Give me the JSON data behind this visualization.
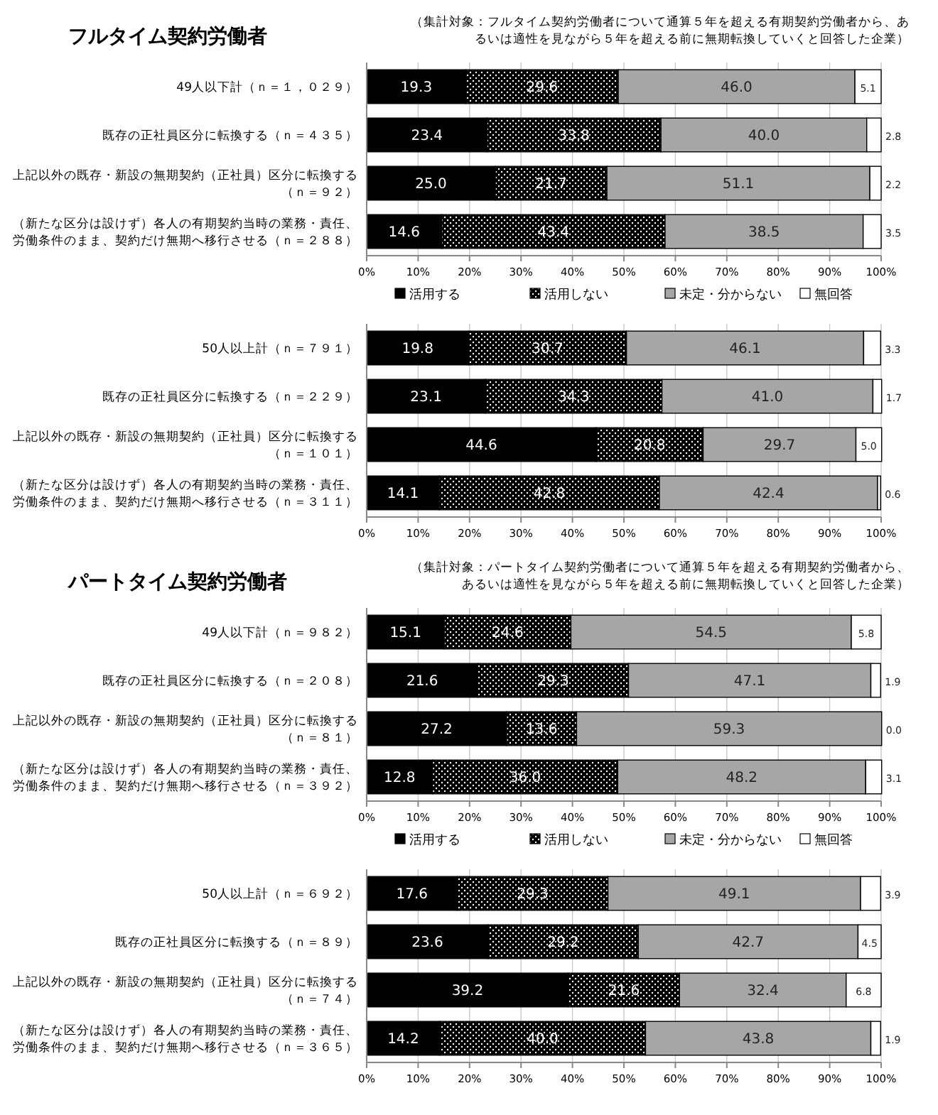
{
  "chart_data": [
    {
      "type": "bar",
      "orientation": "horizontal",
      "stacked": true,
      "title": "フルタイム契約労働者",
      "subtitle": "（集計対象：フルタイム契約労働者について通算５年を超える有期契約労働者から、あるいは適性を見ながら５年を超える前に無期転換していくと回答した企業）",
      "categories": [
        "49人以下計（ｎ＝１，０２９）",
        "既存の正社員区分に転換する（ｎ＝４３５）",
        "上記以外の既存・新設の無期契約（正社員）区分に転換する（ｎ＝９２）",
        "（新たな区分は設けず）各人の有期契約当時の業務・責任、労働条件のまま、契約だけ無期へ移行させる（ｎ＝２８８）"
      ],
      "series": [
        {
          "name": "活用する",
          "color": "#000000",
          "values": [
            19.3,
            23.4,
            25.0,
            14.6
          ],
          "value_labels": [
            "19.3",
            "23.4",
            "25.0",
            "14.6"
          ]
        },
        {
          "name": "活用しない",
          "color": "#000000",
          "values": [
            29.6,
            33.8,
            21.7,
            43.4
          ],
          "value_labels": [
            "29.6",
            "33.8",
            "21.7",
            "43.4"
          ]
        },
        {
          "name": "未定・分からない",
          "color": "#a6a6a6",
          "values": [
            46.0,
            40.0,
            51.1,
            38.5
          ],
          "value_labels": [
            "46.0",
            "40.0",
            "51.1",
            "38.5"
          ]
        },
        {
          "name": "無回答",
          "color": "#ffffff",
          "values": [
            5.1,
            2.8,
            2.2,
            3.5
          ],
          "value_labels": [
            "5.1",
            "2.8",
            "2.2",
            "3.5"
          ]
        }
      ],
      "xlim": [
        0,
        100
      ],
      "xticks": [
        {
          "value": 0,
          "label": "0%"
        },
        {
          "value": 10,
          "label": "10%"
        },
        {
          "value": 20,
          "label": "20%"
        },
        {
          "value": 30,
          "label": "30%"
        },
        {
          "value": 40,
          "label": "40%"
        },
        {
          "value": 50,
          "label": "50%"
        },
        {
          "value": 60,
          "label": "60%"
        },
        {
          "value": 70,
          "label": "70%"
        },
        {
          "value": 80,
          "label": "80%"
        },
        {
          "value": 90,
          "label": "90%"
        },
        {
          "value": 100,
          "label": "100%"
        }
      ],
      "grid": "x",
      "legend": "bottom"
    },
    {
      "type": "bar",
      "orientation": "horizontal",
      "stacked": true,
      "categories": [
        "50人以上計（ｎ＝７９１）",
        "既存の正社員区分に転換する（ｎ＝２２９）",
        "上記以外の既存・新設の無期契約（正社員）区分に転換する（ｎ＝１０１）",
        "（新たな区分は設けず）各人の有期契約当時の業務・責任、労働条件のまま、契約だけ無期へ移行させる（ｎ＝３１１）"
      ],
      "series": [
        {
          "color": "#000000",
          "values": [
            19.8,
            23.1,
            44.6,
            14.1
          ],
          "value_labels": [
            "19.8",
            "23.1",
            "44.6",
            "14.1"
          ]
        },
        {
          "color": "#000000",
          "values": [
            30.7,
            34.3,
            20.8,
            42.8
          ],
          "value_labels": [
            "30.7",
            "34.3",
            "20.8",
            "42.8"
          ]
        },
        {
          "color": "#a6a6a6",
          "values": [
            46.1,
            41.0,
            29.7,
            42.4
          ],
          "value_labels": [
            "46.1",
            "41.0",
            "29.7",
            "42.4"
          ]
        },
        {
          "color": "#ffffff",
          "values": [
            3.3,
            1.7,
            5.0,
            0.6
          ],
          "value_labels": [
            "3.3",
            "1.7",
            "5.0",
            "0.6"
          ]
        }
      ],
      "xlim": [
        0,
        100
      ],
      "xticks": [
        {
          "value": 0,
          "label": "0%"
        },
        {
          "value": 10,
          "label": "10%"
        },
        {
          "value": 20,
          "label": "20%"
        },
        {
          "value": 30,
          "label": "30%"
        },
        {
          "value": 40,
          "label": "40%"
        },
        {
          "value": 50,
          "label": "50%"
        },
        {
          "value": 60,
          "label": "60%"
        },
        {
          "value": 70,
          "label": "70%"
        },
        {
          "value": 80,
          "label": "80%"
        },
        {
          "value": 90,
          "label": "90%"
        },
        {
          "value": 100,
          "label": "100%"
        }
      ],
      "grid": "x"
    },
    {
      "type": "bar",
      "orientation": "horizontal",
      "stacked": true,
      "title": "パートタイム契約労働者",
      "subtitle": "（集計対象：パートタイム契約労働者について通算５年を超える有期契約労働者から、あるいは適性を見ながら５年を超える前に無期転換していくと回答した企業）",
      "categories": [
        "49人以下計（ｎ＝９８２）",
        "既存の正社員区分に転換する（ｎ＝２０８）",
        "上記以外の既存・新設の無期契約（正社員）区分に転換する（ｎ＝８１）",
        "（新たな区分は設けず）各人の有期契約当時の業務・責任、労働条件のまま、契約だけ無期へ移行させる（ｎ＝３９２）"
      ],
      "series": [
        {
          "name": "活用する",
          "color": "#000000",
          "values": [
            15.1,
            21.6,
            27.2,
            12.8
          ],
          "value_labels": [
            "15.1",
            "21.6",
            "27.2",
            "12.8"
          ]
        },
        {
          "name": "活用しない",
          "color": "#000000",
          "values": [
            24.6,
            29.3,
            13.6,
            36.0
          ],
          "value_labels": [
            "24.6",
            "29.3",
            "13.6",
            "36.0"
          ]
        },
        {
          "name": "未定・分からない",
          "color": "#a6a6a6",
          "values": [
            54.5,
            47.1,
            59.3,
            48.2
          ],
          "value_labels": [
            "54.5",
            "47.1",
            "59.3",
            "48.2"
          ]
        },
        {
          "name": "無回答",
          "color": "#ffffff",
          "values": [
            5.8,
            1.9,
            0.0,
            3.1
          ],
          "value_labels": [
            "5.8",
            "1.9",
            "0.0",
            "3.1"
          ]
        }
      ],
      "xlim": [
        0,
        100
      ],
      "xticks": [
        {
          "value": 0,
          "label": "0%"
        },
        {
          "value": 10,
          "label": "10%"
        },
        {
          "value": 20,
          "label": "20%"
        },
        {
          "value": 30,
          "label": "30%"
        },
        {
          "value": 40,
          "label": "40%"
        },
        {
          "value": 50,
          "label": "50%"
        },
        {
          "value": 60,
          "label": "60%"
        },
        {
          "value": 70,
          "label": "70%"
        },
        {
          "value": 80,
          "label": "80%"
        },
        {
          "value": 90,
          "label": "90%"
        },
        {
          "value": 100,
          "label": "100%"
        }
      ],
      "grid": "x",
      "legend": "bottom"
    },
    {
      "type": "bar",
      "orientation": "horizontal",
      "stacked": true,
      "categories": [
        "50人以上計（ｎ＝６９２）",
        "既存の正社員区分に転換する（ｎ＝８９）",
        "上記以外の既存・新設の無期契約（正社員）区分に転換する（ｎ＝７４）",
        "（新たな区分は設けず）各人の有期契約当時の業務・責任、労働条件のまま、契約だけ無期へ移行させる（ｎ＝３６５）"
      ],
      "series": [
        {
          "color": "#000000",
          "values": [
            17.6,
            23.6,
            39.2,
            14.2
          ],
          "value_labels": [
            "17.6",
            "23.6",
            "39.2",
            "14.2"
          ]
        },
        {
          "color": "#000000",
          "values": [
            29.3,
            29.2,
            21.6,
            40.0
          ],
          "value_labels": [
            "29.3",
            "29.2",
            "21.6",
            "40.0"
          ]
        },
        {
          "color": "#a6a6a6",
          "values": [
            49.1,
            42.7,
            32.4,
            43.8
          ],
          "value_labels": [
            "49.1",
            "42.7",
            "32.4",
            "43.8"
          ]
        },
        {
          "color": "#ffffff",
          "values": [
            3.9,
            4.5,
            6.8,
            1.9
          ],
          "value_labels": [
            "3.9",
            "4.5",
            "6.8",
            "1.9"
          ]
        }
      ],
      "xlim": [
        0,
        100
      ],
      "xticks": [
        {
          "value": 0,
          "label": "0%"
        },
        {
          "value": 10,
          "label": "10%"
        },
        {
          "value": 20,
          "label": "20%"
        },
        {
          "value": 30,
          "label": "30%"
        },
        {
          "value": 40,
          "label": "40%"
        },
        {
          "value": 50,
          "label": "50%"
        },
        {
          "value": 60,
          "label": "60%"
        },
        {
          "value": 70,
          "label": "70%"
        },
        {
          "value": 80,
          "label": "80%"
        },
        {
          "value": 90,
          "label": "90%"
        },
        {
          "value": 100,
          "label": "100%"
        }
      ],
      "grid": "x"
    }
  ]
}
